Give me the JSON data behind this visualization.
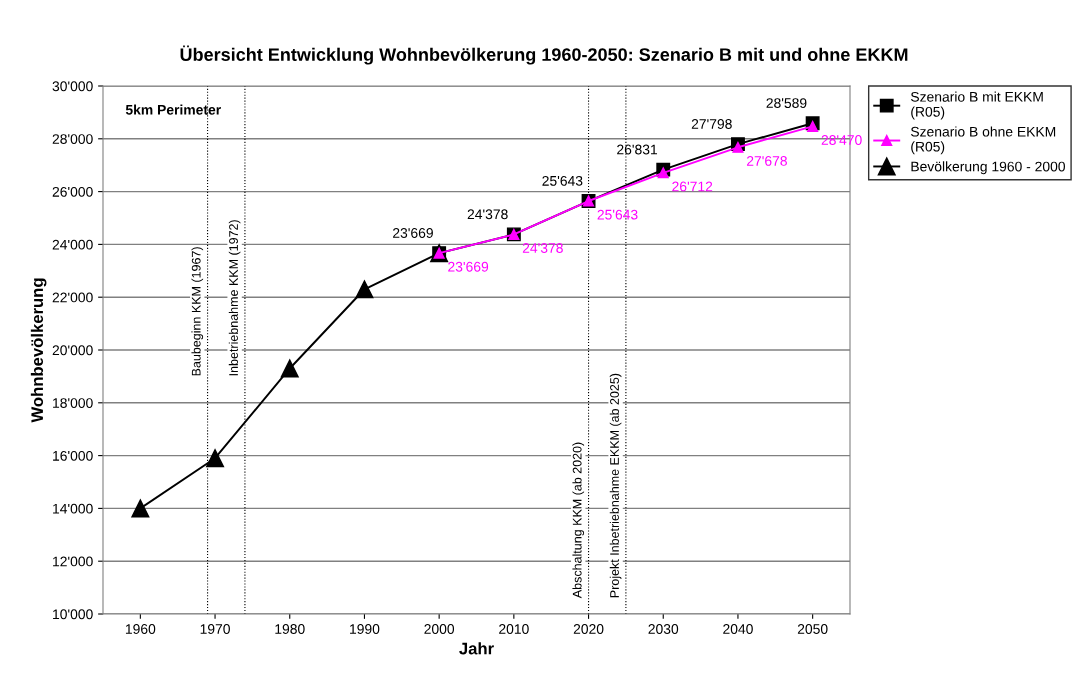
{
  "chart_data": {
    "type": "line",
    "title": "Übersicht Entwicklung Wohnbevölkerung 1960-2050: Szenario B mit und ohne EKKM",
    "xlabel": "Jahr",
    "ylabel": "Wohnbevölkerung",
    "annotations": [
      "5km Perimeter"
    ],
    "series": [
      {
        "name": "Szenario B mit EKKM\n(R05)",
        "color": "#000000",
        "marker": "square",
        "x": [
          2000,
          2010,
          2020,
          2030,
          2040,
          2050
        ],
        "values": [
          23669,
          24378,
          25643,
          26831,
          27798,
          28589
        ],
        "value_labels": [
          "23'669",
          "24'378",
          "25'643",
          "26'831",
          "27'798",
          "28'589"
        ]
      },
      {
        "name": "Szenario B ohne EKKM\n(R05)",
        "color": "#ff00ff",
        "marker": "triangle",
        "x": [
          2000,
          2010,
          2020,
          2030,
          2040,
          2050
        ],
        "values": [
          23669,
          24378,
          25643,
          26712,
          27678,
          28470
        ],
        "value_labels": [
          "23'669",
          "24'378",
          "25'643",
          "26'712",
          "27'678",
          "28'470"
        ]
      },
      {
        "name": "Bevölkerung 1960 - 2000",
        "color": "#000000",
        "marker": "triangle",
        "x": [
          1960,
          1970,
          1980,
          1990,
          2000
        ],
        "values": [
          14000,
          15900,
          19300,
          22300,
          23669
        ]
      }
    ],
    "xlim": [
      1955,
      2055
    ],
    "xticks": [
      1960,
      1970,
      1980,
      1990,
      2000,
      2010,
      2020,
      2030,
      2040,
      2050
    ],
    "ylim": [
      10000,
      30000
    ],
    "yticks": [
      {
        "value": 10000,
        "label": "10'000"
      },
      {
        "value": 12000,
        "label": "12'000"
      },
      {
        "value": 14000,
        "label": "14'000"
      },
      {
        "value": 16000,
        "label": "16'000"
      },
      {
        "value": 18000,
        "label": "18'000"
      },
      {
        "value": 20000,
        "label": "20'000"
      },
      {
        "value": 22000,
        "label": "22'000"
      },
      {
        "value": 24000,
        "label": "24'000"
      },
      {
        "value": 26000,
        "label": "26'000"
      },
      {
        "value": 28000,
        "label": "28'000"
      },
      {
        "value": 30000,
        "label": "30'000"
      }
    ],
    "ref_lines": [
      {
        "axis": "x",
        "value": 1969,
        "label": "Baubeginn KKM (1967)",
        "color": "#000000",
        "line_style": "dotted"
      },
      {
        "axis": "x",
        "value": 1974,
        "label": "Inbetriebnahme KKM (1972)",
        "color": "#000000",
        "line_style": "dotted"
      },
      {
        "axis": "x",
        "value": 2020,
        "label": "Abschaltung KKM (ab 2020)",
        "color": "#000000",
        "line_style": "dotted"
      },
      {
        "axis": "x",
        "value": 2025,
        "label": "Projekt Inbetriebnahme EKKM (ab 2025)",
        "color": "#000000",
        "line_style": "dotted"
      }
    ],
    "grid": "y",
    "legend": "right",
    "line_style": "solid"
  }
}
